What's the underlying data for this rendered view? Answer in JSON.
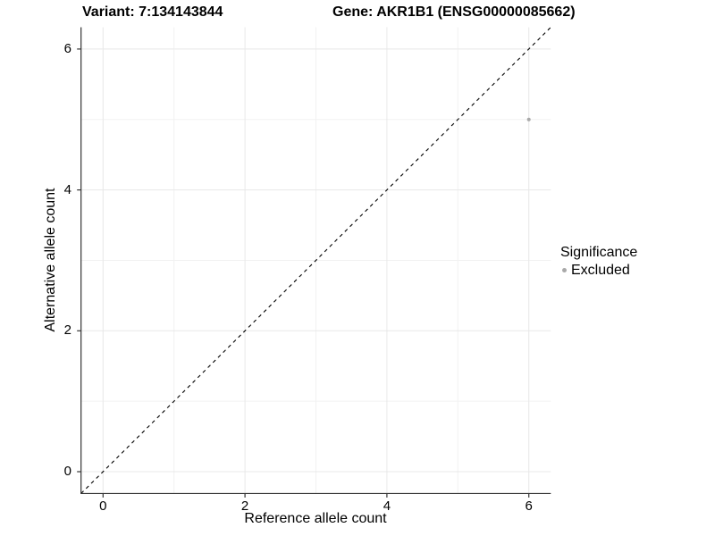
{
  "figure": {
    "title_left": "Variant: 7:134143844",
    "title_right": "Gene: AKR1B1 (ENSG00000085662)"
  },
  "axes": {
    "x_label": "Reference allele count",
    "y_label": "Alternative allele count"
  },
  "legend": {
    "title": "Significance",
    "items": [
      {
        "label": "Excluded",
        "color": "#a9a9a9",
        "marker": "dot-icon"
      }
    ]
  },
  "style": {
    "background": "#ffffff",
    "axis_line": "#333333",
    "grid_major": "#e8e8e8",
    "grid_minor": "#f2f2f2",
    "text_color": "#000000",
    "point_color": "#a9a9a9"
  },
  "chart_data": {
    "type": "scatter",
    "title": "Variant: 7:134143844 | Gene: AKR1B1 (ENSG00000085662)",
    "xlabel": "Reference allele count",
    "ylabel": "Alternative allele count",
    "xlim": [
      -0.31,
      6.31
    ],
    "ylim": [
      -0.31,
      6.31
    ],
    "x_ticks": [
      0,
      2,
      4,
      6
    ],
    "y_ticks": [
      0,
      2,
      4,
      6
    ],
    "x_minor_ticks": [
      1,
      3,
      5
    ],
    "y_minor_ticks": [
      1,
      3,
      5
    ],
    "grid": true,
    "legend_position": "right",
    "legend_title": "Significance",
    "series": [
      {
        "name": "Excluded",
        "color": "#a9a9a9",
        "marker": "circle",
        "points": [
          {
            "x": 6,
            "y": 5
          }
        ]
      }
    ],
    "reference_line": {
      "type": "identity",
      "equation": "y = x",
      "style": "dashed",
      "color": "#000000"
    }
  }
}
